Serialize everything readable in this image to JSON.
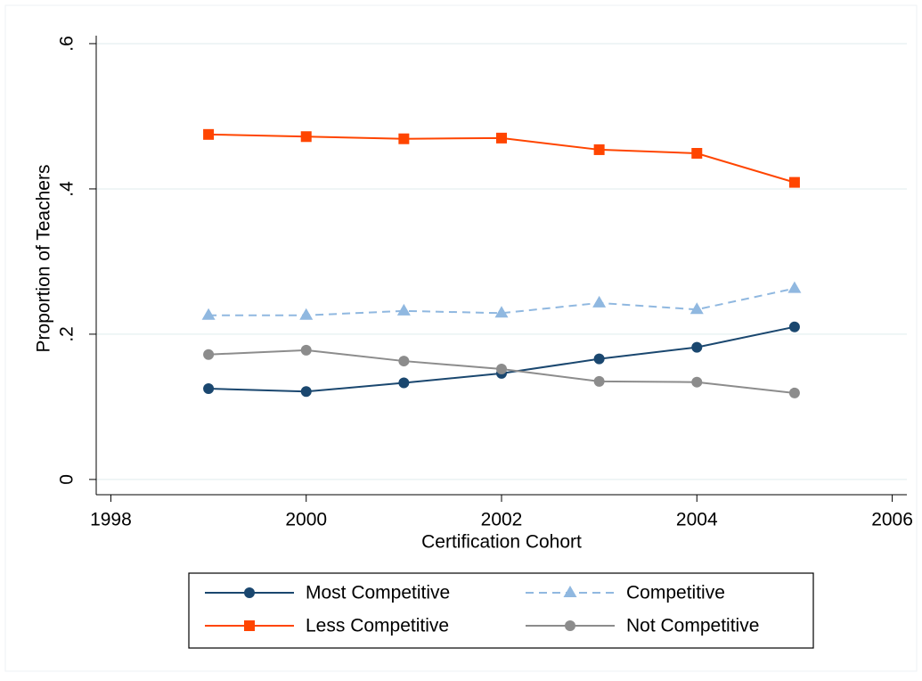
{
  "chart_data": {
    "type": "line",
    "x_label": "Certification Cohort",
    "y_label": "Proportion of Teachers",
    "x": [
      1999,
      2000,
      2001,
      2002,
      2003,
      2004,
      2005
    ],
    "series": [
      {
        "name": "Most Competitive",
        "color": "#1a476f",
        "marker": "circle",
        "dash": false,
        "values": [
          0.125,
          0.121,
          0.133,
          0.146,
          0.166,
          0.182,
          0.21
        ]
      },
      {
        "name": "Competitive",
        "color": "#90b8e0",
        "marker": "triangle",
        "dash": true,
        "values": [
          0.226,
          0.226,
          0.232,
          0.229,
          0.243,
          0.234,
          0.263
        ]
      },
      {
        "name": "Less Competitive",
        "color": "#ff4500",
        "marker": "square",
        "dash": false,
        "values": [
          0.475,
          0.472,
          0.469,
          0.47,
          0.454,
          0.449,
          0.409
        ]
      },
      {
        "name": "Not Competitive",
        "color": "#8c8c8c",
        "marker": "circle",
        "dash": false,
        "values": [
          0.172,
          0.178,
          0.163,
          0.152,
          0.135,
          0.134,
          0.119
        ]
      }
    ],
    "xlim": [
      1997.85,
      2006.15
    ],
    "xticks": [
      1998,
      2000,
      2002,
      2004,
      2006
    ],
    "ylim": [
      -0.021,
      0.611
    ],
    "yticks": [
      0,
      {
        "value": 0.2,
        "label": ".2"
      },
      {
        "value": 0.4,
        "label": ".4"
      },
      {
        "value": 0.6,
        "label": ".6"
      }
    ],
    "grid": true,
    "legend": "bottom"
  }
}
